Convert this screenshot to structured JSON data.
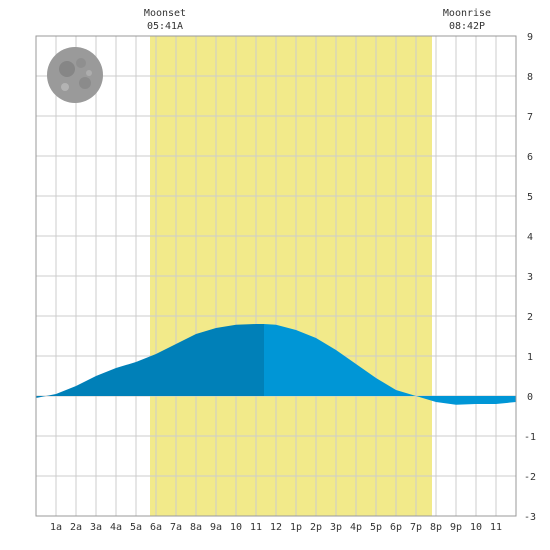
{
  "colors": {
    "daylight": "#f2ea8a",
    "grid": "#cccccc",
    "frame": "#999999",
    "tide_dark": "#0080b8",
    "tide_light": "#0096d6",
    "moon": "#9a9a9a"
  },
  "moon": {
    "icon": "full-moon-icon"
  },
  "moonset": {
    "label": "Moonset",
    "time": "05:41A"
  },
  "moonrise": {
    "label": "Moonrise",
    "time": "08:42P"
  },
  "chart_data": {
    "type": "area",
    "x_tick_labels": [
      "1a",
      "2a",
      "3a",
      "4a",
      "5a",
      "6a",
      "7a",
      "8a",
      "9a",
      "10",
      "11",
      "12",
      "1p",
      "2p",
      "3p",
      "4p",
      "5p",
      "6p",
      "7p",
      "8p",
      "9p",
      "10",
      "11"
    ],
    "y_ticks": [
      9,
      8,
      7,
      6,
      5,
      4,
      3,
      2,
      1,
      0,
      -1,
      -2,
      -3
    ],
    "ylim": [
      -3,
      9
    ],
    "xlim_hours": [
      0,
      24
    ],
    "grid": true,
    "daylight_hours": [
      5.7,
      19.8
    ],
    "dark_fill_until_hour": 11.4,
    "series": [
      {
        "hours": [
          0,
          1,
          2,
          3,
          4,
          5,
          6,
          7,
          8,
          9,
          10,
          11,
          11.4,
          12,
          13,
          14,
          15,
          16,
          17,
          18,
          19,
          20,
          21,
          22,
          23,
          24
        ],
        "values": [
          -0.05,
          0.05,
          0.25,
          0.5,
          0.7,
          0.85,
          1.05,
          1.3,
          1.55,
          1.7,
          1.78,
          1.8,
          1.8,
          1.78,
          1.65,
          1.45,
          1.15,
          0.8,
          0.45,
          0.15,
          0.0,
          -0.15,
          -0.22,
          -0.2,
          -0.2,
          -0.15
        ]
      }
    ]
  }
}
